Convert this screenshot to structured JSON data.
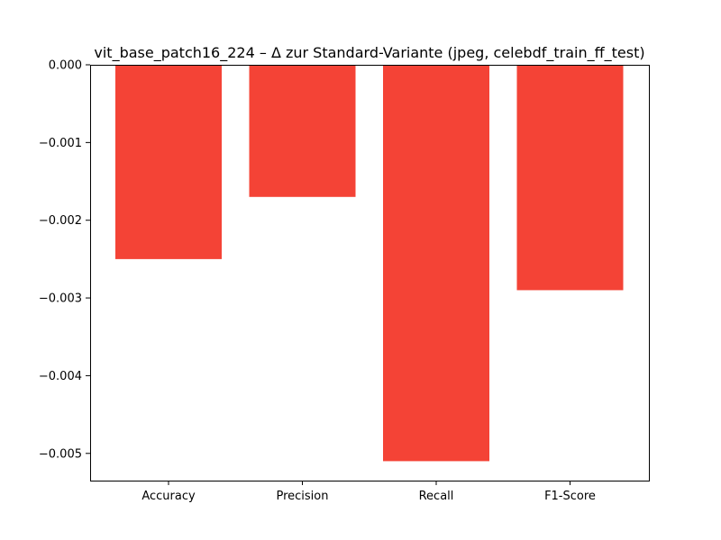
{
  "chart_data": {
    "type": "bar",
    "title": "vit_base_patch16_224 – Δ zur Standard-Variante (jpeg, celebdf_train_ff_test)",
    "xlabel": "",
    "ylabel": "",
    "categories": [
      "Accuracy",
      "Precision",
      "Recall",
      "F1-Score"
    ],
    "values": [
      -0.0025,
      -0.0017,
      -0.0051,
      -0.0029
    ],
    "ylim": [
      -0.00535,
      0.0
    ],
    "yticks": [
      0.0,
      -0.001,
      -0.002,
      -0.003,
      -0.004,
      -0.005
    ],
    "ytick_labels": [
      "0.000",
      "−0.001",
      "−0.002",
      "−0.003",
      "−0.004",
      "−0.005"
    ],
    "bar_color": "#f44336",
    "grid": false,
    "legend": "none"
  }
}
